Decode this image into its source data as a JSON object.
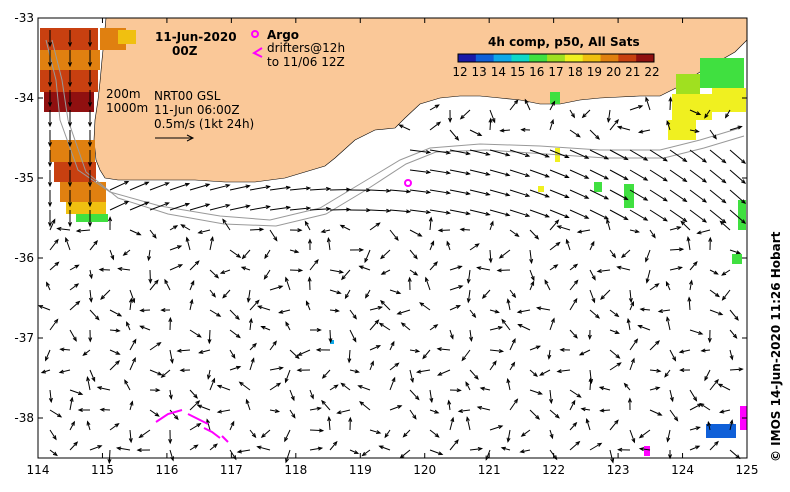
{
  "map": {
    "date": "11-Jun-2020",
    "hour": "00Z",
    "legend": {
      "argo_label": "Argo",
      "drifters_label": "drifters@12h",
      "drifters_range": "to 11/06 12Z"
    },
    "colorbar": {
      "title": "4h comp, p50, All Sats",
      "ticks": [
        "12",
        "13",
        "14",
        "15",
        "16",
        "17",
        "18",
        "19",
        "20",
        "21",
        "22"
      ],
      "colors": [
        "#1a1aa8",
        "#1060d8",
        "#10a8e8",
        "#10d8c8",
        "#40e040",
        "#a0e020",
        "#f0f020",
        "#f0c010",
        "#e08010",
        "#c84010",
        "#901010"
      ]
    },
    "contours_label_200": "200m",
    "contours_label_1000": "1000m",
    "product": "NRT00 GSL",
    "product_time": "11-Jun 06:00Z",
    "scale_label": "0.5m/s (1kt 24h)",
    "credit": "© IMOS 14-Jun-2020 11:26 Hobart",
    "lon_ticks": [
      "114",
      "115",
      "116",
      "117",
      "118",
      "119",
      "120",
      "121",
      "122",
      "123",
      "124",
      "125"
    ],
    "lat_ticks": [
      "-33",
      "-34",
      "-35",
      "-36",
      "-37",
      "-38"
    ],
    "land_color": "#fac898",
    "argo_color": "#ff00ff",
    "drifter_color": "#ff00ff"
  }
}
